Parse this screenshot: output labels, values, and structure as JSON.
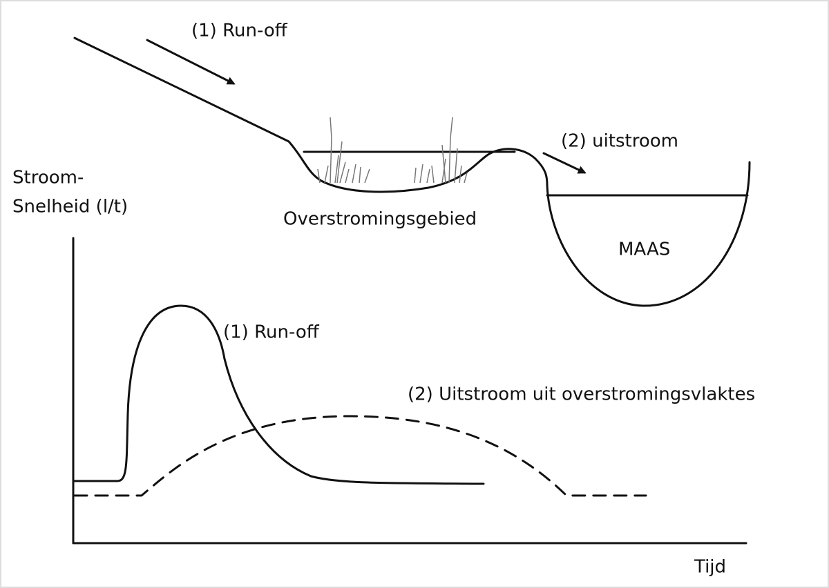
{
  "labels": {
    "runoff_top": "(1) Run-off",
    "uitstroom_top": "(2) uitstroom",
    "floodplain": "Overstromingsgebied",
    "river": "MAAS",
    "y_axis": [
      "Stroom-",
      "Snelheid (l/t)"
    ],
    "curve_runoff": "(1) Run-off",
    "curve_outflow": "(2) Uitstroom uit overstromingsvlaktes",
    "x_axis": "Tijd"
  }
}
